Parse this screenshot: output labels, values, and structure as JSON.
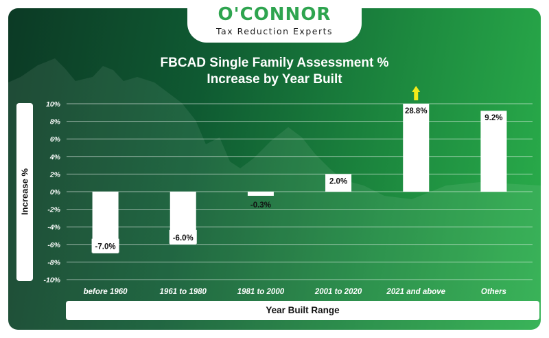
{
  "logo": {
    "name": "O'CONNOR",
    "tagline": "Tax Reduction Experts"
  },
  "chart_data": {
    "type": "bar",
    "title_line1": "FBCAD Single Family Assessment %",
    "title_line2": "Increase by Year Built",
    "xlabel": "Year Built Range",
    "ylabel": "Increase %",
    "categories": [
      "before 1960",
      "1961 to 1980",
      "1981 to 2000",
      "2001 to 2020",
      "2021 and above",
      "Others"
    ],
    "values": [
      -7.0,
      -6.0,
      -0.3,
      2.0,
      28.8,
      9.2
    ],
    "value_labels": [
      "-7.0%",
      "-6.0%",
      "-0.3%",
      "2.0%",
      "28.8%",
      "9.2%"
    ],
    "ylim": [
      -10,
      10
    ],
    "yticks": [
      10,
      8,
      6,
      4,
      2,
      0,
      -2,
      -4,
      -6,
      -8,
      -10
    ],
    "ytick_labels": [
      "10%",
      "8%",
      "6%",
      "4%",
      "2%",
      "0%",
      "-2%",
      "-4%",
      "-6%",
      "-8%",
      "-10%"
    ],
    "off_scale_categories": [
      "2021 and above"
    ],
    "off_scale_marker_color": "#f2ea1a",
    "bar_color": "#ffffff",
    "grid": true
  }
}
